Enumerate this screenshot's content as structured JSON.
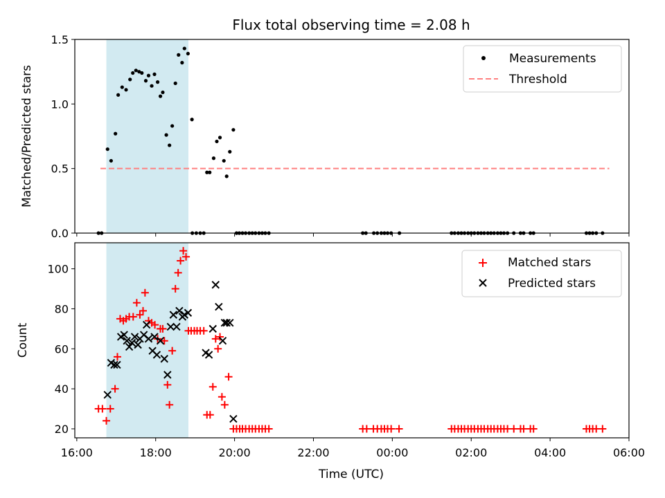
{
  "chart_data": {
    "title": "Flux total observing time = 2.08 h",
    "colors": {
      "measurement": "#000000",
      "threshold": "#ff7f7f",
      "matched": "#ff0000",
      "predicted": "#000000",
      "shade": "#add8e6"
    },
    "x_ticks": [
      "16:00",
      "18:00",
      "20:00",
      "22:00",
      "00:00",
      "02:00",
      "04:00",
      "06:00"
    ],
    "xlabel": "Time (UTC)",
    "xlim_hours": [
      15.95,
      30.0
    ],
    "shaded_interval_hours": [
      16.75,
      18.83
    ],
    "panels": [
      {
        "type": "scatter",
        "ylabel": "Matched/Predicted stars",
        "ylim": [
          0,
          1.5
        ],
        "y_ticks": [
          "0.0",
          "0.5",
          "1.0",
          "1.5"
        ],
        "legend_location": "upper right",
        "legend": [
          {
            "label": "Measurements",
            "marker": "dot"
          },
          {
            "label": "Threshold",
            "marker": "dashed-line"
          }
        ],
        "threshold": {
          "value": 0.5,
          "x_range_hours": [
            16.6,
            29.5
          ]
        },
        "measurements": [
          [
            16.55,
            0
          ],
          [
            16.63,
            0
          ],
          [
            16.78,
            0.65
          ],
          [
            16.87,
            0.56
          ],
          [
            16.98,
            0.77
          ],
          [
            17.05,
            1.07
          ],
          [
            17.15,
            1.13
          ],
          [
            17.25,
            1.11
          ],
          [
            17.35,
            1.19
          ],
          [
            17.42,
            1.24
          ],
          [
            17.5,
            1.26
          ],
          [
            17.58,
            1.25
          ],
          [
            17.65,
            1.24
          ],
          [
            17.75,
            1.18
          ],
          [
            17.82,
            1.22
          ],
          [
            17.9,
            1.14
          ],
          [
            17.97,
            1.23
          ],
          [
            18.05,
            1.17
          ],
          [
            18.12,
            1.06
          ],
          [
            18.18,
            1.09
          ],
          [
            18.27,
            0.76
          ],
          [
            18.35,
            0.68
          ],
          [
            18.42,
            0.83
          ],
          [
            18.5,
            1.16
          ],
          [
            18.58,
            1.38
          ],
          [
            18.67,
            1.32
          ],
          [
            18.73,
            1.43
          ],
          [
            18.82,
            1.39
          ],
          [
            18.92,
            0.88
          ],
          [
            18.93,
            0
          ],
          [
            19.03,
            0
          ],
          [
            19.13,
            0
          ],
          [
            19.22,
            0
          ],
          [
            19.3,
            0.47
          ],
          [
            19.37,
            0.47
          ],
          [
            19.47,
            0.58
          ],
          [
            19.55,
            0.71
          ],
          [
            19.63,
            0.74
          ],
          [
            19.73,
            0.56
          ],
          [
            19.8,
            0.44
          ],
          [
            19.88,
            0.63
          ],
          [
            19.97,
            0.8
          ],
          [
            20.05,
            0
          ],
          [
            20.12,
            0
          ],
          [
            20.2,
            0
          ],
          [
            20.28,
            0
          ],
          [
            20.37,
            0
          ],
          [
            20.45,
            0
          ],
          [
            20.53,
            0
          ],
          [
            20.62,
            0
          ],
          [
            20.7,
            0
          ],
          [
            20.78,
            0
          ],
          [
            20.87,
            0
          ],
          [
            23.25,
            0
          ],
          [
            23.33,
            0
          ],
          [
            23.53,
            0
          ],
          [
            23.62,
            0
          ],
          [
            23.72,
            0
          ],
          [
            23.8,
            0
          ],
          [
            23.88,
            0
          ],
          [
            23.97,
            0
          ],
          [
            24.18,
            0
          ],
          [
            25.5,
            0
          ],
          [
            25.58,
            0
          ],
          [
            25.67,
            0
          ],
          [
            25.75,
            0
          ],
          [
            25.83,
            0
          ],
          [
            25.92,
            0
          ],
          [
            26.0,
            0
          ],
          [
            26.08,
            0
          ],
          [
            26.17,
            0
          ],
          [
            26.25,
            0
          ],
          [
            26.33,
            0
          ],
          [
            26.42,
            0
          ],
          [
            26.5,
            0
          ],
          [
            26.58,
            0
          ],
          [
            26.67,
            0
          ],
          [
            26.75,
            0
          ],
          [
            26.83,
            0
          ],
          [
            26.92,
            0
          ],
          [
            27.08,
            0
          ],
          [
            27.25,
            0
          ],
          [
            27.33,
            0
          ],
          [
            27.5,
            0
          ],
          [
            27.58,
            0
          ],
          [
            28.92,
            0
          ],
          [
            29.0,
            0
          ],
          [
            29.08,
            0
          ],
          [
            29.17,
            0
          ],
          [
            29.33,
            0
          ]
        ]
      },
      {
        "type": "scatter",
        "ylabel": "Count",
        "ylim": [
          15.5,
          113
        ],
        "y_ticks": [
          "20",
          "40",
          "60",
          "80",
          "100"
        ],
        "legend_location": "upper right",
        "legend": [
          {
            "label": "Matched stars",
            "marker": "plus"
          },
          {
            "label": "Predicted stars",
            "marker": "x"
          }
        ],
        "matched": [
          [
            16.55,
            30
          ],
          [
            16.65,
            30
          ],
          [
            16.75,
            24
          ],
          [
            16.85,
            30
          ],
          [
            16.97,
            40
          ],
          [
            17.03,
            56
          ],
          [
            17.1,
            75
          ],
          [
            17.18,
            74
          ],
          [
            17.25,
            75
          ],
          [
            17.33,
            76
          ],
          [
            17.43,
            76
          ],
          [
            17.52,
            83
          ],
          [
            17.6,
            77
          ],
          [
            17.68,
            79
          ],
          [
            17.73,
            88
          ],
          [
            17.82,
            74
          ],
          [
            17.9,
            73
          ],
          [
            17.98,
            72
          ],
          [
            18.05,
            65
          ],
          [
            18.12,
            70
          ],
          [
            18.18,
            70
          ],
          [
            18.22,
            64
          ],
          [
            18.3,
            42
          ],
          [
            18.35,
            32
          ],
          [
            18.42,
            59
          ],
          [
            18.5,
            90
          ],
          [
            18.57,
            98
          ],
          [
            18.63,
            104
          ],
          [
            18.7,
            109
          ],
          [
            18.77,
            106
          ],
          [
            18.83,
            69
          ],
          [
            18.9,
            69
          ],
          [
            18.98,
            69
          ],
          [
            19.05,
            69
          ],
          [
            19.13,
            69
          ],
          [
            19.22,
            69
          ],
          [
            19.3,
            27
          ],
          [
            19.38,
            27
          ],
          [
            19.45,
            41
          ],
          [
            19.52,
            65
          ],
          [
            19.58,
            60
          ],
          [
            19.63,
            66
          ],
          [
            19.68,
            36
          ],
          [
            19.75,
            32
          ],
          [
            19.85,
            46
          ],
          [
            19.97,
            20
          ],
          [
            20.05,
            20
          ],
          [
            20.13,
            20
          ],
          [
            20.2,
            20
          ],
          [
            20.28,
            20
          ],
          [
            20.37,
            20
          ],
          [
            20.45,
            20
          ],
          [
            20.53,
            20
          ],
          [
            20.62,
            20
          ],
          [
            20.7,
            20
          ],
          [
            20.78,
            20
          ],
          [
            20.87,
            20
          ],
          [
            23.25,
            20
          ],
          [
            23.35,
            20
          ],
          [
            23.52,
            20
          ],
          [
            23.62,
            20
          ],
          [
            23.72,
            20
          ],
          [
            23.8,
            20
          ],
          [
            23.88,
            20
          ],
          [
            23.97,
            20
          ],
          [
            24.17,
            20
          ],
          [
            25.5,
            20
          ],
          [
            25.58,
            20
          ],
          [
            25.67,
            20
          ],
          [
            25.75,
            20
          ],
          [
            25.83,
            20
          ],
          [
            25.92,
            20
          ],
          [
            26.0,
            20
          ],
          [
            26.08,
            20
          ],
          [
            26.17,
            20
          ],
          [
            26.25,
            20
          ],
          [
            26.33,
            20
          ],
          [
            26.42,
            20
          ],
          [
            26.5,
            20
          ],
          [
            26.58,
            20
          ],
          [
            26.67,
            20
          ],
          [
            26.75,
            20
          ],
          [
            26.83,
            20
          ],
          [
            26.92,
            20
          ],
          [
            27.08,
            20
          ],
          [
            27.25,
            20
          ],
          [
            27.33,
            20
          ],
          [
            27.5,
            20
          ],
          [
            27.58,
            20
          ],
          [
            28.92,
            20
          ],
          [
            29.0,
            20
          ],
          [
            29.08,
            20
          ],
          [
            29.17,
            20
          ],
          [
            29.33,
            20
          ]
        ],
        "predicted": [
          [
            16.78,
            37
          ],
          [
            16.87,
            53
          ],
          [
            16.95,
            52
          ],
          [
            17.02,
            52
          ],
          [
            17.12,
            66
          ],
          [
            17.2,
            67
          ],
          [
            17.27,
            64
          ],
          [
            17.33,
            61
          ],
          [
            17.4,
            63
          ],
          [
            17.47,
            66
          ],
          [
            17.55,
            62
          ],
          [
            17.6,
            65
          ],
          [
            17.7,
            67
          ],
          [
            17.77,
            72
          ],
          [
            17.82,
            65
          ],
          [
            17.92,
            59
          ],
          [
            17.97,
            66
          ],
          [
            18.03,
            57
          ],
          [
            18.12,
            64
          ],
          [
            18.22,
            55
          ],
          [
            18.3,
            47
          ],
          [
            18.38,
            71
          ],
          [
            18.45,
            77
          ],
          [
            18.53,
            71
          ],
          [
            18.6,
            79
          ],
          [
            18.68,
            76
          ],
          [
            18.73,
            77
          ],
          [
            18.82,
            78
          ],
          [
            19.27,
            58
          ],
          [
            19.35,
            57
          ],
          [
            19.45,
            70
          ],
          [
            19.52,
            92
          ],
          [
            19.6,
            81
          ],
          [
            19.7,
            64
          ],
          [
            19.75,
            73
          ],
          [
            19.8,
            73
          ],
          [
            19.88,
            73
          ],
          [
            19.97,
            25
          ]
        ]
      }
    ]
  }
}
